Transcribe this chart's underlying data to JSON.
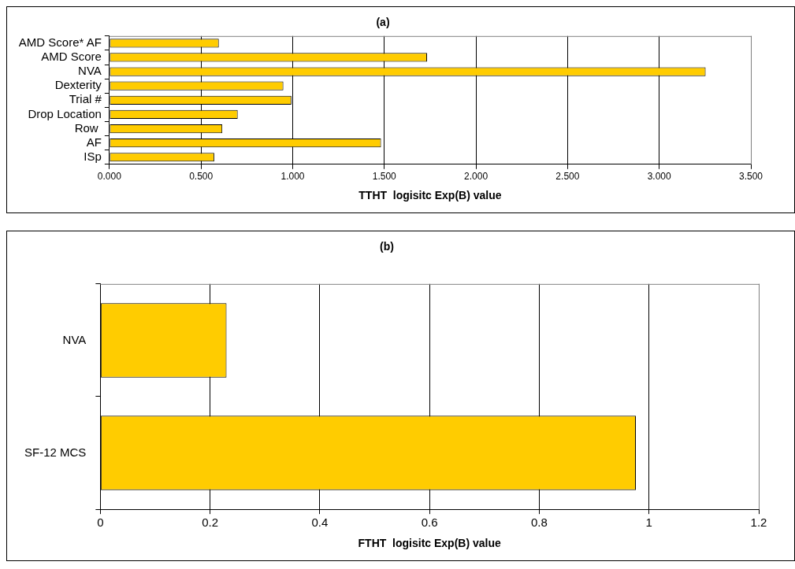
{
  "chart_data": [
    {
      "type": "bar",
      "orientation": "horizontal",
      "title": "(a)",
      "xlabel": "TTHT  logisitc Exp(B) value",
      "categories": [
        "AMD Score* AF",
        "AMD Score",
        "NVA",
        "Dexterity",
        "Trial #",
        "Drop Location",
        "Row ",
        "AF",
        "ISp"
      ],
      "values": [
        0.597,
        1.733,
        3.253,
        0.949,
        0.993,
        0.7,
        0.616,
        1.482,
        0.572
      ],
      "color": "#ffcc00",
      "xlim": [
        0,
        3.5
      ],
      "xticks": [
        {
          "value": 0,
          "label": "0.000"
        },
        {
          "value": 0.5,
          "label": "0.500"
        },
        {
          "value": 1,
          "label": "1.000"
        },
        {
          "value": 1.5,
          "label": "1.500"
        },
        {
          "value": 2,
          "label": "2.000"
        },
        {
          "value": 2.5,
          "label": "2.500"
        },
        {
          "value": 3,
          "label": "3.000"
        },
        {
          "value": 3.5,
          "label": "3.500"
        }
      ],
      "grid": "x"
    },
    {
      "type": "bar",
      "orientation": "horizontal",
      "title": "(b)",
      "xlabel": "FTHT  logisitc Exp(B) value",
      "categories": [
        "NVA",
        "SF-12 MCS"
      ],
      "values": [
        0.23,
        0.976
      ],
      "color": "#ffcc00",
      "xlim": [
        0,
        1.2
      ],
      "xticks": [
        0,
        0.2,
        0.4,
        0.6,
        0.8,
        1,
        1.2
      ],
      "grid": "x"
    }
  ]
}
